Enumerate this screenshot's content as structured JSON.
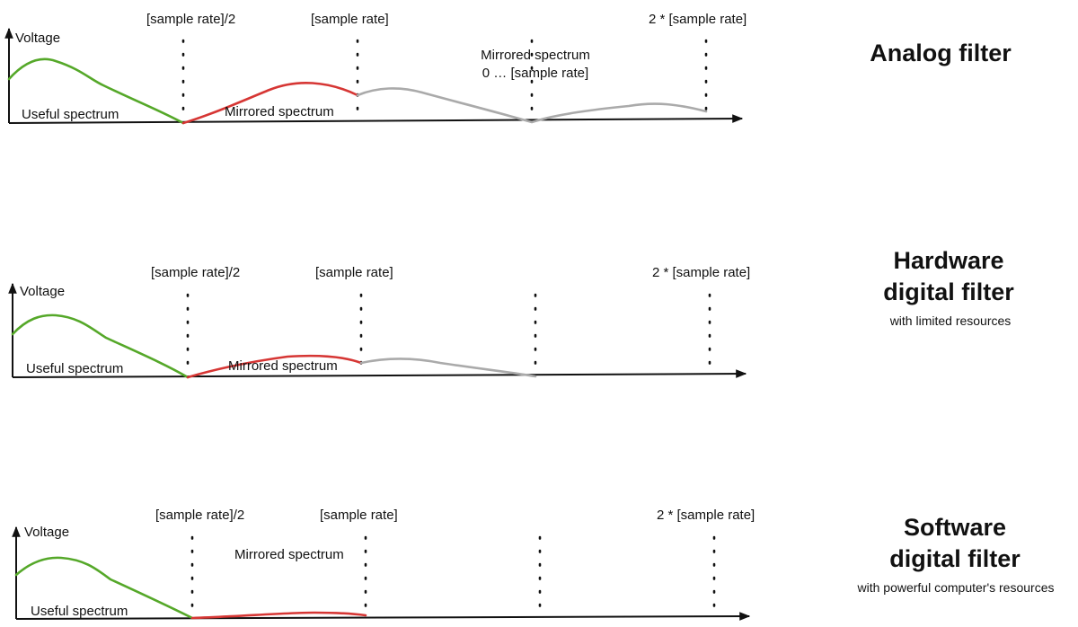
{
  "labels": {
    "voltage": "Voltage",
    "half_rate": "[sample rate]/2",
    "rate": "[sample rate]",
    "double_rate": "2 * [sample rate]",
    "useful": "Useful spectrum",
    "mirrored": "Mirrored spectrum",
    "mirrored_range_line1": "Mirrored spectrum",
    "mirrored_range_line2": "0 … [sample rate]"
  },
  "filters": [
    {
      "title_lines": [
        "Analog filter"
      ],
      "subtitle": ""
    },
    {
      "title_lines": [
        "Hardware",
        "digital filter"
      ],
      "subtitle": "with limited resources"
    },
    {
      "title_lines": [
        "Software",
        "digital filter"
      ],
      "subtitle": "with powerful computer's resources"
    }
  ],
  "colors": {
    "useful": "#55a829",
    "mirrored": "#d63634",
    "aliased": "#aaaaaa",
    "axis": "#111111"
  }
}
